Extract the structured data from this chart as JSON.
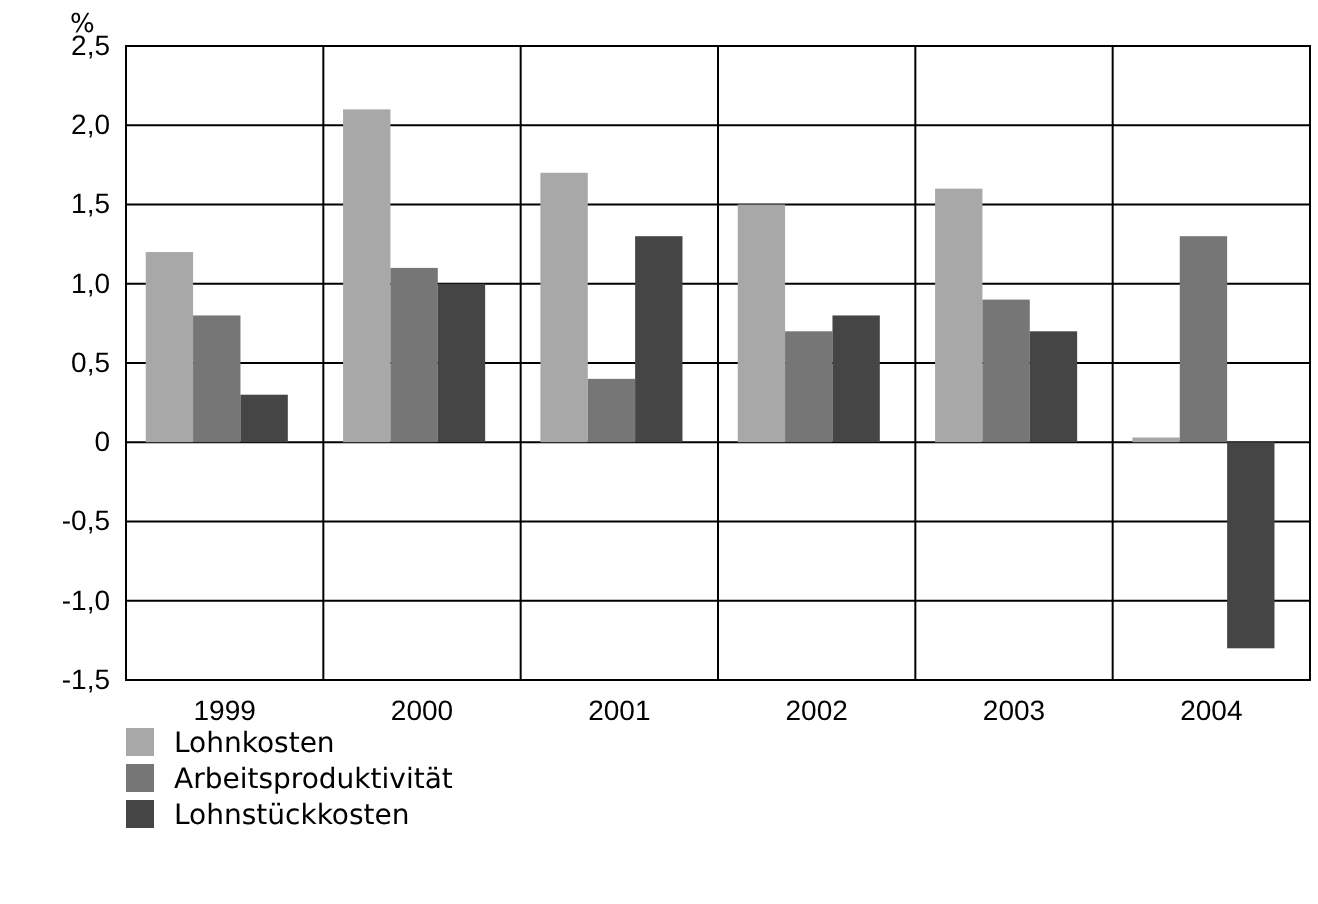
{
  "chart_data": {
    "type": "bar",
    "ylabel": "%",
    "categories": [
      "1999",
      "2000",
      "2001",
      "2002",
      "2003",
      "2004"
    ],
    "series": [
      {
        "name": "Lohnkosten",
        "color": "#a8a8a8",
        "values": [
          1.2,
          2.1,
          1.7,
          1.5,
          1.6,
          0.03
        ]
      },
      {
        "name": "Arbeitsproduktivität",
        "color": "#767676",
        "values": [
          0.8,
          1.1,
          0.4,
          0.7,
          0.9,
          1.3
        ]
      },
      {
        "name": "Lohnstückkosten",
        "color": "#454545",
        "values": [
          0.3,
          1.0,
          1.3,
          0.8,
          0.7,
          -1.3
        ]
      }
    ],
    "ylim": [
      -1.5,
      2.5
    ],
    "yticks": [
      {
        "value": -1.5,
        "label": "-1,5"
      },
      {
        "value": -1,
        "label": "-1,0"
      },
      {
        "value": -0.5,
        "label": "-0,5"
      },
      0,
      {
        "value": 0.5,
        "label": "0,5"
      },
      {
        "value": 1,
        "label": "1,0"
      },
      {
        "value": 1.5,
        "label": "1,5"
      },
      {
        "value": 2,
        "label": "2,0"
      },
      {
        "value": 2.5,
        "label": "2,5"
      }
    ],
    "grid": true,
    "legend": "bottom"
  }
}
